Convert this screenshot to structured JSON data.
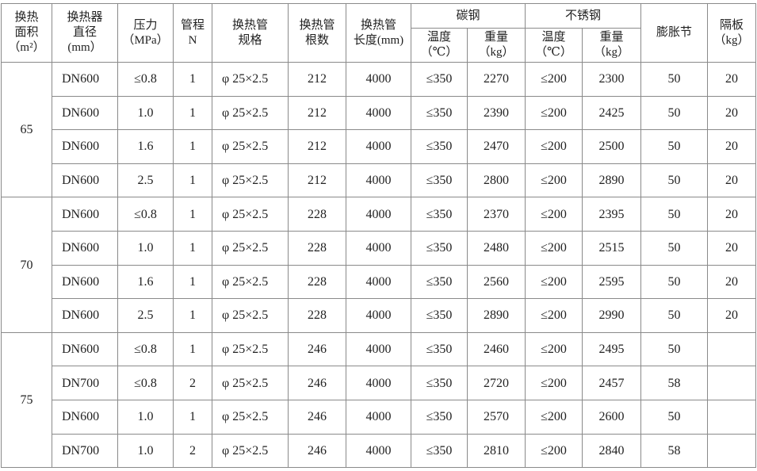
{
  "headers": {
    "area": [
      "换热",
      "面积",
      "（m²）"
    ],
    "diameter": [
      "换热器",
      "直径",
      "(mm）"
    ],
    "pressure": [
      "压力",
      "（MPa）"
    ],
    "passes": [
      "管程",
      "N"
    ],
    "tube_spec": [
      "换热管",
      "规格"
    ],
    "tube_count": [
      "换热管",
      "根数"
    ],
    "tube_length": [
      "换热管",
      "长度(mm)"
    ],
    "carbon_steel": "碳钢",
    "stainless_steel": "不锈钢",
    "temp": [
      "温度",
      "（℃）"
    ],
    "weight": [
      "重量",
      "（kg）"
    ],
    "expansion_joint": "膨胀节",
    "baffle": [
      "隔板",
      "（kg）"
    ]
  },
  "groups": [
    {
      "area": "65",
      "rows": [
        [
          "DN600",
          "≤0.8",
          "1",
          "φ 25×2.5",
          "212",
          "4000",
          "≤350",
          "2270",
          "≤200",
          "2300",
          "50",
          "20"
        ],
        [
          "DN600",
          "1.0",
          "1",
          "φ 25×2.5",
          "212",
          "4000",
          "≤350",
          "2390",
          "≤200",
          "2425",
          "50",
          "20"
        ],
        [
          "DN600",
          "1.6",
          "1",
          "φ 25×2.5",
          "212",
          "4000",
          "≤350",
          "2470",
          "≤200",
          "2500",
          "50",
          "20"
        ],
        [
          "DN600",
          "2.5",
          "1",
          "φ 25×2.5",
          "212",
          "4000",
          "≤350",
          "2800",
          "≤200",
          "2890",
          "50",
          "20"
        ]
      ]
    },
    {
      "area": "70",
      "rows": [
        [
          "DN600",
          "≤0.8",
          "1",
          "φ 25×2.5",
          "228",
          "4000",
          "≤350",
          "2370",
          "≤200",
          "2395",
          "50",
          "20"
        ],
        [
          "DN600",
          "1.0",
          "1",
          "φ 25×2.5",
          "228",
          "4000",
          "≤350",
          "2480",
          "≤200",
          "2515",
          "50",
          "20"
        ],
        [
          "DN600",
          "1.6",
          "1",
          "φ 25×2.5",
          "228",
          "4000",
          "≤350",
          "2560",
          "≤200",
          "2595",
          "50",
          "20"
        ],
        [
          "DN600",
          "2.5",
          "1",
          "φ 25×2.5",
          "228",
          "4000",
          "≤350",
          "2890",
          "≤200",
          "2990",
          "50",
          "20"
        ]
      ]
    },
    {
      "area": "75",
      "rows": [
        [
          "DN600",
          "≤0.8",
          "1",
          "φ 25×2.5",
          "246",
          "4000",
          "≤350",
          "2460",
          "≤200",
          "2495",
          "50",
          ""
        ],
        [
          "DN700",
          "≤0.8",
          "2",
          "φ 25×2.5",
          "246",
          "4000",
          "≤350",
          "2720",
          "≤200",
          "2457",
          "58",
          ""
        ],
        [
          "DN600",
          "1.0",
          "1",
          "φ 25×2.5",
          "246",
          "4000",
          "≤350",
          "2570",
          "≤200",
          "2600",
          "50",
          ""
        ],
        [
          "DN700",
          "1.0",
          "2",
          "φ 25×2.5",
          "246",
          "4000",
          "≤350",
          "2810",
          "≤200",
          "2840",
          "58",
          ""
        ]
      ]
    }
  ]
}
